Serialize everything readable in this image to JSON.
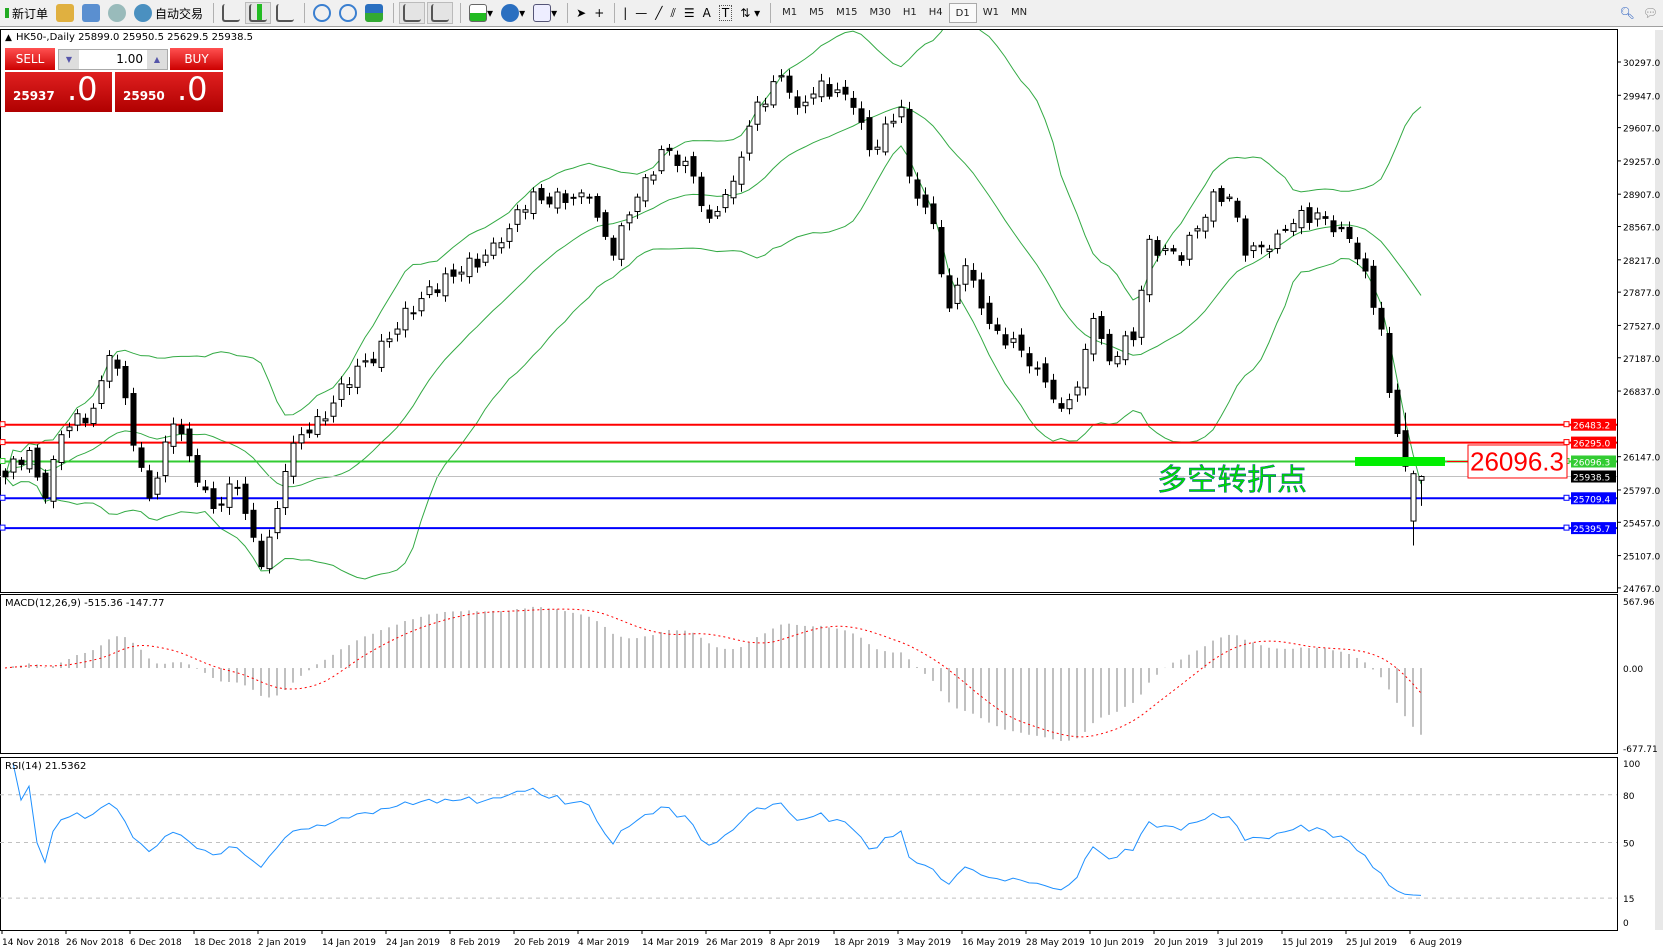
{
  "toolbar": {
    "new_order": "新订单",
    "auto_trading": "自动交易",
    "icons": [
      "new-order-icon",
      "market-watch-icon",
      "navigator-icon",
      "signals-icon",
      "auto-trading-icon",
      "bar-chart-icon",
      "candlestick-icon",
      "line-chart-icon",
      "zoom-in-icon",
      "zoom-out-icon",
      "tile-windows-icon",
      "chart-shift-icon",
      "autoscroll-icon",
      "add-indicator-icon",
      "periods-clock-icon",
      "templates-icon",
      "cursor-icon",
      "crosshair-icon",
      "vertical-line-icon",
      "horizontal-line-icon",
      "trendline-icon",
      "fibonacci-icon",
      "channel-icon",
      "text-icon",
      "text-label-icon",
      "arrows-icon",
      "search-icon",
      "chat-icon"
    ],
    "timeframes": [
      "M1",
      "M5",
      "M15",
      "M30",
      "H1",
      "H4",
      "D1",
      "W1",
      "MN"
    ],
    "active_timeframe": "D1"
  },
  "trade": {
    "sell": "SELL",
    "buy": "BUY",
    "lot": "1.00",
    "bid_big": "25937",
    "bid_small": ".0",
    "ask_big": "25950",
    "ask_small": ".0",
    "color": "#e01010"
  },
  "chart_data": {
    "type": "candlestick",
    "title": "HK50-,Daily  25899.0 25950.5 25629.5 25938.5",
    "symbol": "HK50-",
    "period": "Daily",
    "last_bar": {
      "open": 25899.0,
      "high": 25950.5,
      "low": 25629.5,
      "close": 25938.5
    },
    "close_waypoints": [
      [
        0,
        25935
      ],
      [
        3,
        26212
      ],
      [
        5,
        25713
      ],
      [
        7,
        26378
      ],
      [
        11,
        26656
      ],
      [
        13,
        27211
      ],
      [
        15,
        26767
      ],
      [
        16,
        26268
      ],
      [
        18,
        25713
      ],
      [
        21,
        26490
      ],
      [
        23,
        26157
      ],
      [
        26,
        25602
      ],
      [
        29,
        25824
      ],
      [
        32,
        24991
      ],
      [
        34,
        25602
      ],
      [
        35,
        25991
      ],
      [
        37,
        26378
      ],
      [
        41,
        26711
      ],
      [
        45,
        27155
      ],
      [
        49,
        27489
      ],
      [
        53,
        27933
      ],
      [
        56,
        28044
      ],
      [
        60,
        28266
      ],
      [
        63,
        28544
      ],
      [
        66,
        28931
      ],
      [
        70,
        28820
      ],
      [
        73,
        28876
      ],
      [
        76,
        28266
      ],
      [
        79,
        28876
      ],
      [
        82,
        29376
      ],
      [
        86,
        29098
      ],
      [
        88,
        28654
      ],
      [
        91,
        29043
      ],
      [
        94,
        29875
      ],
      [
        97,
        30153
      ],
      [
        99,
        29820
      ],
      [
        102,
        30097
      ],
      [
        106,
        29820
      ],
      [
        108,
        29376
      ],
      [
        112,
        29820
      ],
      [
        113,
        29098
      ],
      [
        116,
        28598
      ],
      [
        118,
        27711
      ],
      [
        120,
        28155
      ],
      [
        122,
        27711
      ],
      [
        125,
        27322
      ],
      [
        127,
        27267
      ],
      [
        130,
        26933
      ],
      [
        132,
        26656
      ],
      [
        134,
        26878
      ],
      [
        136,
        27600
      ],
      [
        138,
        27155
      ],
      [
        141,
        27378
      ],
      [
        143,
        28432
      ],
      [
        147,
        28210
      ],
      [
        149,
        28544
      ],
      [
        151,
        28931
      ],
      [
        153,
        28876
      ],
      [
        155,
        28266
      ],
      [
        159,
        28488
      ],
      [
        161,
        28598
      ],
      [
        164,
        28710
      ],
      [
        167,
        28544
      ],
      [
        170,
        28099
      ],
      [
        172,
        27489
      ],
      [
        173,
        26822
      ],
      [
        175,
        26046
      ],
      [
        176,
        25968
      ],
      [
        177,
        25938.5
      ]
    ],
    "candles_known": [
      [
        175,
        26420,
        26610,
        25990,
        26046
      ],
      [
        176,
        25470,
        26000,
        25213,
        25968
      ]
    ],
    "price_axis": [
      "30297.0",
      "29947.0",
      "29607.0",
      "29257.0",
      "28907.0",
      "28567.0",
      "28217.0",
      "27877.0",
      "27527.0",
      "27187.0",
      "26837.0",
      "26147.0",
      "25797.0",
      "25457.0",
      "25107.0",
      "24767.0"
    ],
    "ylim": [
      24767,
      30297
    ],
    "dates": [
      "14 Nov 2018",
      "26 Nov 2018",
      "6 Dec 2018",
      "18 Dec 2018",
      "2 Jan 2019",
      "14 Jan 2019",
      "24 Jan 2019",
      "8 Feb 2019",
      "20 Feb 2019",
      "4 Mar 2019",
      "14 Mar 2019",
      "26 Mar 2019",
      "8 Apr 2019",
      "18 Apr 2019",
      "3 May 2019",
      "16 May 2019",
      "28 May 2019",
      "10 Jun 2019",
      "20 Jun 2019",
      "3 Jul 2019",
      "15 Jul 2019",
      "25 Jul 2019",
      "6 Aug 2019"
    ],
    "hlines": [
      {
        "value": 26483.2,
        "label": "26483.2",
        "color": "#ff0000"
      },
      {
        "value": 26295.0,
        "label": "26295.0",
        "color": "#ff0000"
      },
      {
        "value": 26096.3,
        "label": "26096.3",
        "color": "#33cc33"
      },
      {
        "value": 25709.4,
        "label": "25709.4",
        "color": "#0000ff"
      },
      {
        "value": 25395.7,
        "label": "25395.7",
        "color": "#0000ff"
      }
    ],
    "bid_line": {
      "value": 25938.5,
      "label": "25938.5",
      "color": "#c0c0c0"
    },
    "annotation": {
      "text": "多空转折点",
      "color": "#00dd00",
      "level_box": "26096.3",
      "box_color": "#ff0000"
    },
    "bollinger_color": "#33aa44",
    "macd": {
      "label": "MACD(12,26,9) -515.36 -147.77",
      "axis": [
        "567.96",
        "0.00",
        "-677.71"
      ],
      "ylim": [
        -677.71,
        567.96
      ],
      "hist_color": "#c0c0c0",
      "signal_color": "#ff0000"
    },
    "rsi": {
      "label": "RSI(14) 21.5362",
      "axis": [
        "100",
        "80",
        "50",
        "15",
        "0"
      ],
      "levels": [
        80,
        50,
        15
      ],
      "color": "#1e90ff"
    }
  }
}
